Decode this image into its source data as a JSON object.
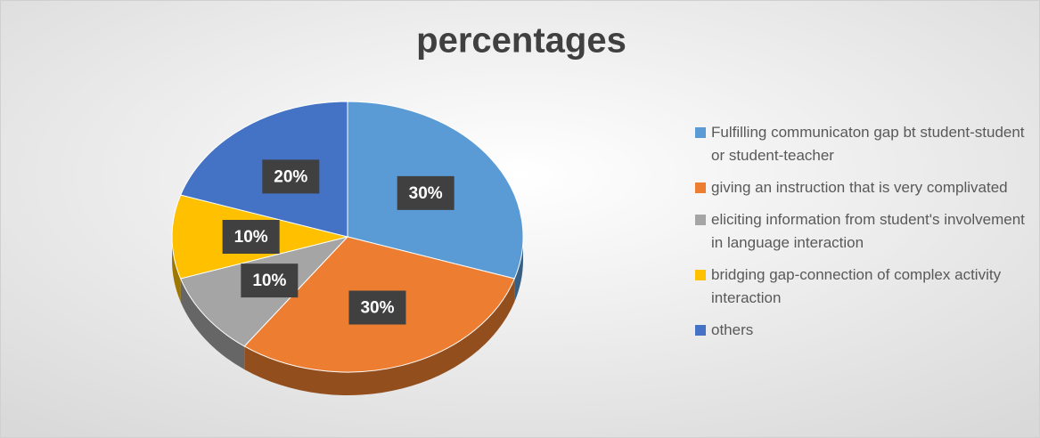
{
  "chart_data": {
    "type": "pie",
    "title": "percentages",
    "categories": [
      "Fulfilling communicaton gap bt student-student or student-teacher",
      "giving an instruction that is very complivated",
      "eliciting information from student's involvement in language interaction",
      "bridging gap-connection of complex activity interaction",
      "others"
    ],
    "values": [
      30,
      30,
      10,
      10,
      20
    ],
    "value_labels": [
      "30%",
      "30%",
      "10%",
      "10%",
      "20%"
    ],
    "colors": [
      "#5b9bd5",
      "#ed7d31",
      "#a5a5a5",
      "#ffc000",
      "#4472c4"
    ],
    "legend": "right"
  }
}
